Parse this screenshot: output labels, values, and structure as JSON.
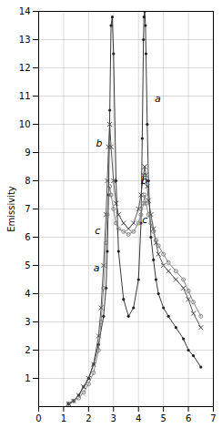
{
  "chart_data": {
    "type": "line",
    "y_label": "Emissivity",
    "xlim": [
      0,
      7
    ],
    "ylim": [
      0,
      14
    ],
    "xticks": [
      0,
      1,
      2,
      3,
      4,
      5,
      6,
      7
    ],
    "yticks": [
      1,
      2,
      3,
      4,
      5,
      6,
      7,
      8,
      9,
      10,
      11,
      12,
      13,
      14
    ],
    "grid": true,
    "series": [
      {
        "color": "#222222",
        "marker": "dot",
        "x": [
          1.2,
          1.4,
          1.6,
          1.8,
          2.0,
          2.2,
          2.4,
          2.6,
          2.7,
          2.75,
          2.8,
          2.85,
          2.9,
          2.95,
          3.0,
          3.1,
          3.2,
          3.4,
          3.6,
          3.8,
          4.0,
          4.1,
          4.15,
          4.2,
          4.22,
          4.25,
          4.28,
          4.3,
          4.35,
          4.4,
          4.5,
          4.6,
          4.7,
          4.8,
          5.0,
          5.2,
          5.5,
          5.8,
          6.0,
          6.2,
          6.5
        ],
        "values": [
          0.1,
          0.2,
          0.4,
          0.7,
          1.0,
          1.5,
          2.2,
          3.2,
          4.2,
          5.5,
          7.5,
          10.5,
          13.5,
          13.8,
          12.5,
          8.0,
          5.5,
          3.8,
          3.2,
          3.5,
          4.5,
          6.5,
          9.5,
          13.0,
          13.8,
          14.0,
          13.5,
          12.5,
          10.0,
          8.0,
          6.0,
          5.2,
          4.5,
          4.0,
          3.5,
          3.2,
          2.8,
          2.4,
          2.0,
          1.8,
          1.4
        ]
      },
      {
        "color": "#444444",
        "marker": "x",
        "x": [
          1.2,
          1.4,
          1.6,
          1.8,
          2.0,
          2.2,
          2.4,
          2.5,
          2.6,
          2.7,
          2.75,
          2.8,
          2.85,
          2.9,
          3.0,
          3.1,
          3.2,
          3.4,
          3.6,
          3.8,
          4.0,
          4.1,
          4.2,
          4.25,
          4.3,
          4.35,
          4.4,
          4.5,
          4.6,
          4.7,
          4.8,
          5.0,
          5.2,
          5.5,
          5.8,
          6.0,
          6.2,
          6.5
        ],
        "values": [
          0.1,
          0.2,
          0.4,
          0.7,
          1.0,
          1.5,
          2.5,
          3.5,
          5.0,
          6.8,
          8.0,
          9.2,
          10.0,
          9.2,
          8.0,
          7.2,
          6.8,
          6.5,
          6.3,
          6.5,
          7.0,
          7.5,
          8.2,
          8.5,
          8.2,
          7.8,
          7.3,
          6.8,
          6.3,
          5.8,
          5.4,
          5.0,
          4.8,
          4.5,
          4.2,
          3.8,
          3.3,
          2.8
        ]
      },
      {
        "color": "#777777",
        "marker": "circle",
        "x": [
          1.2,
          1.4,
          1.6,
          1.8,
          2.0,
          2.2,
          2.4,
          2.5,
          2.6,
          2.7,
          2.75,
          2.8,
          2.85,
          2.9,
          3.0,
          3.1,
          3.2,
          3.4,
          3.6,
          3.8,
          4.0,
          4.1,
          4.2,
          4.25,
          4.3,
          4.4,
          4.5,
          4.6,
          4.7,
          4.8,
          5.0,
          5.2,
          5.5,
          5.8,
          6.0,
          6.2,
          6.5
        ],
        "values": [
          0.1,
          0.2,
          0.3,
          0.5,
          0.8,
          1.2,
          2.0,
          3.0,
          4.2,
          5.8,
          6.8,
          7.5,
          7.8,
          7.5,
          7.0,
          6.5,
          6.3,
          6.2,
          6.1,
          6.2,
          6.5,
          6.8,
          7.2,
          7.5,
          7.2,
          6.8,
          6.5,
          6.2,
          5.9,
          5.7,
          5.4,
          5.1,
          4.8,
          4.5,
          4.1,
          3.7,
          3.2
        ]
      }
    ],
    "annotations": [
      {
        "text": "a",
        "x": 4.65,
        "y": 10.8
      },
      {
        "text": "b",
        "x": 2.3,
        "y": 9.2
      },
      {
        "text": "b",
        "x": 4.1,
        "y": 7.9
      },
      {
        "text": "c",
        "x": 2.25,
        "y": 6.1
      },
      {
        "text": "c",
        "x": 4.15,
        "y": 6.5
      },
      {
        "text": "a",
        "x": 2.2,
        "y": 4.8
      }
    ]
  }
}
